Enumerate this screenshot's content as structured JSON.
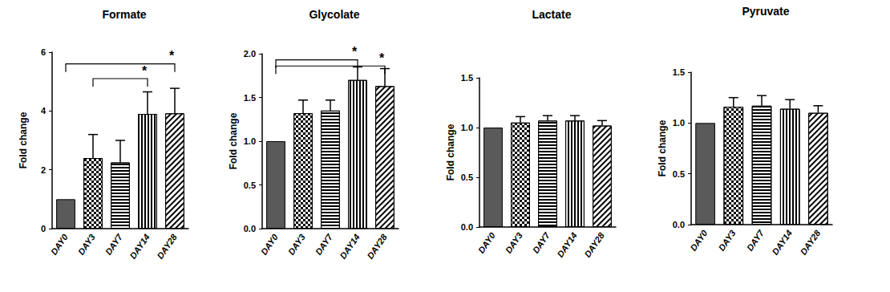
{
  "chart_data": [
    {
      "type": "bar",
      "title": "Formate",
      "y_label": "Fold change",
      "categories": [
        "DAY0",
        "DAY3",
        "DAY7",
        "DAY14",
        "DAY28"
      ],
      "values": [
        1,
        2.4,
        2.25,
        3.9,
        3.92
      ],
      "errors": [
        0,
        0.8,
        0.75,
        0.75,
        0.85
      ],
      "colors": [
        "#5a5a5a",
        "#ffffff",
        "#ffffff",
        "#ffffff",
        "#ffffff"
      ],
      "ylim": [
        0,
        6
      ],
      "yticks": [
        0,
        2,
        4,
        6
      ],
      "grid": false,
      "brackets": [
        {
          "from": "DAY0",
          "to": "DAY28",
          "y": 5.6,
          "label": "*"
        },
        {
          "from": "DAY3",
          "to": "DAY14",
          "y": 5.1,
          "label": "*"
        }
      ]
    },
    {
      "type": "bar",
      "title": "Glycolate",
      "y_label": "Fold change",
      "categories": [
        "DAY0",
        "DAY3",
        "DAY7",
        "DAY14",
        "DAY28"
      ],
      "values": [
        1,
        1.32,
        1.35,
        1.7,
        1.63
      ],
      "errors": [
        0,
        0.15,
        0.12,
        0.15,
        0.2
      ],
      "colors": [
        "#5a5a5a",
        "#ffffff",
        "#ffffff",
        "#ffffff",
        "#ffffff"
      ],
      "ylim": [
        0,
        2
      ],
      "yticks": [
        {
          "value": 0,
          "label": "0.0"
        },
        {
          "value": 0.5,
          "label": "0.5"
        },
        {
          "value": 1,
          "label": "1.0"
        },
        {
          "value": 1.5,
          "label": "1.5"
        },
        {
          "value": 2,
          "label": "2.0"
        }
      ],
      "grid": false,
      "brackets": [
        {
          "from": "DAY0",
          "to": "DAY14",
          "y": 1.93,
          "label": "*"
        },
        {
          "from": "DAY0",
          "to": "DAY28",
          "y": 1.86,
          "label": "*"
        }
      ]
    },
    {
      "type": "bar",
      "title": "Lactate",
      "y_label": "Fold change",
      "categories": [
        "DAY0",
        "DAY3",
        "DAY7",
        "DAY14",
        "DAY28"
      ],
      "values": [
        1,
        1.05,
        1.07,
        1.07,
        1.02
      ],
      "errors": [
        0,
        0.06,
        0.05,
        0.05,
        0.05
      ],
      "colors": [
        "#5a5a5a",
        "#ffffff",
        "#ffffff",
        "#ffffff",
        "#ffffff"
      ],
      "ylim": [
        0,
        1.5
      ],
      "yticks": [
        {
          "value": 0,
          "label": "0.0"
        },
        {
          "value": 0.5,
          "label": "0.5"
        },
        {
          "value": 1,
          "label": "1.0"
        },
        {
          "value": 1.5,
          "label": "1.5"
        }
      ],
      "grid": false,
      "brackets": []
    },
    {
      "type": "bar",
      "title": "Pyruvate",
      "y_label": "Fold change",
      "categories": [
        "DAY0",
        "DAY3",
        "DAY7",
        "DAY14",
        "DAY28"
      ],
      "values": [
        1,
        1.16,
        1.17,
        1.14,
        1.1
      ],
      "errors": [
        0,
        0.09,
        0.1,
        0.09,
        0.07
      ],
      "colors": [
        "#5a5a5a",
        "#ffffff",
        "#ffffff",
        "#ffffff",
        "#ffffff"
      ],
      "ylim": [
        0,
        1.5
      ],
      "yticks": [
        {
          "value": 0,
          "label": "0.0"
        },
        {
          "value": 0.5,
          "label": "0.5"
        },
        {
          "value": 1,
          "label": "1.0"
        },
        {
          "value": 1.5,
          "label": "1.5"
        }
      ],
      "grid": false,
      "brackets": []
    }
  ]
}
